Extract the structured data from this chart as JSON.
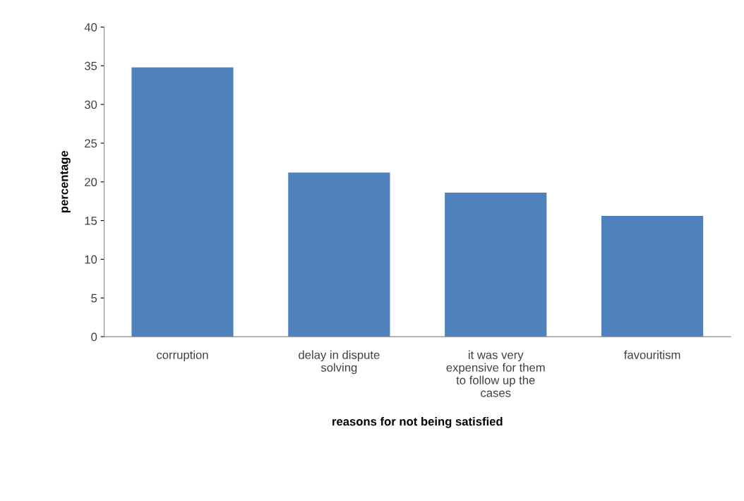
{
  "chart_data": {
    "type": "bar",
    "xlabel": "reasons for not being satisfied",
    "ylabel": "percentage",
    "categories": [
      "corruption",
      "delay in dispute\nsolving",
      "it was very\nexpensive for them\nto follow up the\ncases",
      "favouritism"
    ],
    "values": [
      34.8,
      21.2,
      18.6,
      15.6
    ],
    "color": "#4f81bd",
    "ylim": [
      0,
      40
    ],
    "yticks": [
      0,
      5,
      10,
      15,
      20,
      25,
      30,
      35,
      40
    ],
    "grid": false,
    "legend": false
  }
}
